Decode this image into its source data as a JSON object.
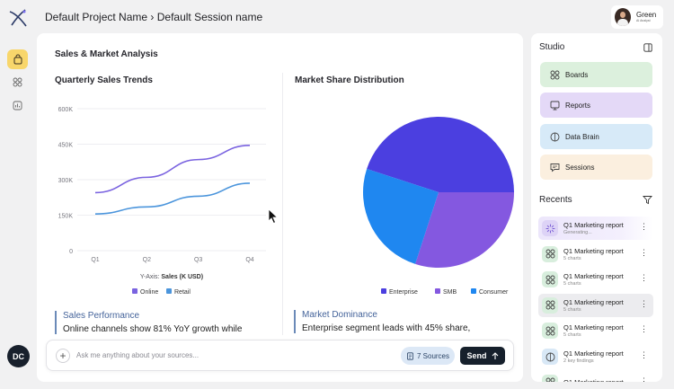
{
  "header": {
    "project": "Default Project Name",
    "separator": "›",
    "session": "Default Session name",
    "user": {
      "name": "Green",
      "role": "AI Analyst"
    }
  },
  "rail": {
    "icons": [
      "bag-icon",
      "grid-icon",
      "chart-icon"
    ],
    "avatar": "DC"
  },
  "main": {
    "title": "Sales & Market Analysis",
    "line_chart_title": "Quarterly Sales Trends",
    "pie_chart_title": "Market Share Distribution",
    "y_axis_prefix": "Y-Axis:",
    "y_axis_value": "Sales (K USD)"
  },
  "insights": [
    {
      "heading": "Sales Performance",
      "body": "Online channels show 81% YoY growth while"
    },
    {
      "heading": "Market Dominance",
      "body": "Enterprise segment leads with 45% share,"
    }
  ],
  "composer": {
    "placeholder": "Ask me anything about your sources...",
    "sources_label": "7 Sources",
    "send_label": "Send"
  },
  "studio": {
    "title": "Studio",
    "items": [
      {
        "label": "Boards",
        "color": "#dcf0dd",
        "icon": "grid-icon"
      },
      {
        "label": "Reports",
        "color": "#e4d9f7",
        "icon": "report-icon"
      },
      {
        "label": "Data Brain",
        "color": "#d7eaf8",
        "icon": "brain-icon"
      },
      {
        "label": "Sessions",
        "color": "#fbefdf",
        "icon": "chat-icon"
      }
    ]
  },
  "recents": {
    "title": "Recents",
    "items": [
      {
        "title": "Q1 Marketing report",
        "sub": "Generating...",
        "style": "gen",
        "icon": "spinner-icon"
      },
      {
        "title": "Q1 Marketing report",
        "sub": "5 charts",
        "style": "",
        "icon": "grid-icon"
      },
      {
        "title": "Q1 Marketing report",
        "sub": "5 charts",
        "style": "",
        "icon": "grid-icon"
      },
      {
        "title": "Q1 Marketing report",
        "sub": "5 charts",
        "style": "gray",
        "icon": "grid-icon"
      },
      {
        "title": "Q1 Marketing report",
        "sub": "5 charts",
        "style": "",
        "icon": "grid-icon"
      },
      {
        "title": "Q1 Marketing report",
        "sub": "2 key findings",
        "style": "",
        "icon": "brain-icon"
      },
      {
        "title": "Q1 Marketing report",
        "sub": "",
        "style": "",
        "icon": "grid-icon"
      }
    ]
  },
  "chart_data": [
    {
      "type": "line",
      "title": "Quarterly Sales Trends",
      "categories": [
        "Q1",
        "Q2",
        "Q3",
        "Q4"
      ],
      "ylim": [
        0,
        600
      ],
      "yticks": [
        0,
        150,
        300,
        450,
        600
      ],
      "ytick_labels": [
        "0",
        "150K",
        "300K",
        "450K",
        "600K"
      ],
      "ylabel": "Sales (K USD)",
      "grid": true,
      "legend": "bottom",
      "series": [
        {
          "name": "Online",
          "color": "#7a63e0",
          "values": [
            245,
            310,
            385,
            445
          ]
        },
        {
          "name": "Retail",
          "color": "#4b95dc",
          "values": [
            155,
            185,
            230,
            285
          ]
        }
      ]
    },
    {
      "type": "pie",
      "title": "Market Share Distribution",
      "legend": "bottom",
      "categories": [
        "Enterprise",
        "SMB",
        "Consumer"
      ],
      "values": [
        45,
        30,
        25
      ],
      "colors": [
        "#4b3fe0",
        "#8458e0",
        "#1f87f0"
      ]
    }
  ]
}
